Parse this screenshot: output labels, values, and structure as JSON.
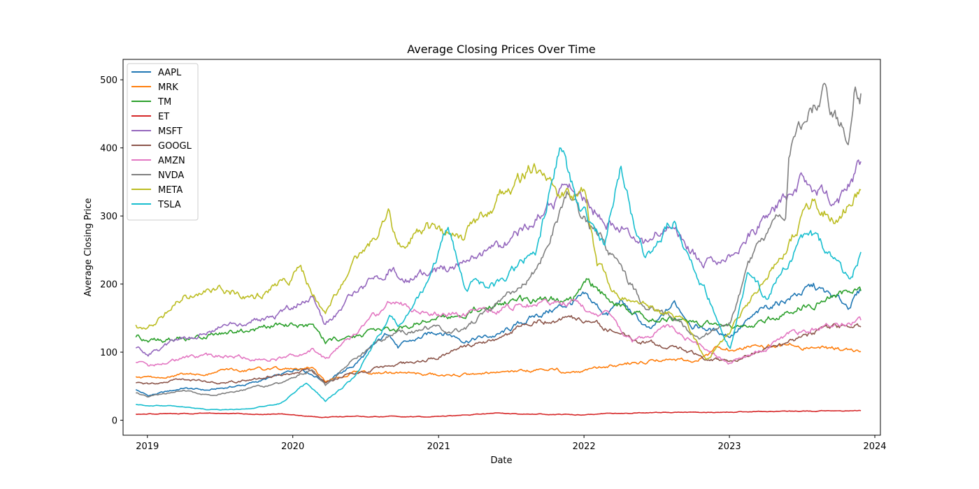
{
  "chart_data": {
    "type": "line",
    "title": "Average Closing Prices Over Time",
    "xlabel": "Date",
    "ylabel": "Average Closing Price",
    "xlim": [
      "2018-11-01",
      "2024-01-15"
    ],
    "ylim": [
      -22,
      530
    ],
    "x_ticks": [
      "2019",
      "2020",
      "2021",
      "2022",
      "2023",
      "2024"
    ],
    "y_ticks": [
      0,
      100,
      200,
      300,
      400,
      500
    ],
    "grid": false,
    "legend_position": "top-left",
    "series": [
      {
        "name": "AAPL",
        "color": "#1f77b4",
        "points": [
          [
            "2018-12-03",
            45
          ],
          [
            "2019-01-03",
            36
          ],
          [
            "2019-04-01",
            47
          ],
          [
            "2019-06-03",
            44
          ],
          [
            "2019-09-03",
            52
          ],
          [
            "2019-12-02",
            66
          ],
          [
            "2020-01-21",
            78
          ],
          [
            "2020-03-23",
            57
          ],
          [
            "2020-06-01",
            80
          ],
          [
            "2020-08-31",
            130
          ],
          [
            "2020-09-21",
            108
          ],
          [
            "2021-01-04",
            132
          ],
          [
            "2021-03-08",
            118
          ],
          [
            "2021-06-01",
            125
          ],
          [
            "2021-09-01",
            153
          ],
          [
            "2022-01-04",
            180
          ],
          [
            "2022-03-01",
            155
          ],
          [
            "2022-04-01",
            175
          ],
          [
            "2022-06-16",
            130
          ],
          [
            "2022-08-16",
            172
          ],
          [
            "2022-10-03",
            140
          ],
          [
            "2023-01-03",
            125
          ],
          [
            "2023-04-03",
            165
          ],
          [
            "2023-07-31",
            196
          ],
          [
            "2023-10-26",
            168
          ],
          [
            "2023-11-27",
            190
          ]
        ]
      },
      {
        "name": "MRK",
        "color": "#ff7f0e",
        "points": [
          [
            "2018-12-03",
            64
          ],
          [
            "2019-01-03",
            63
          ],
          [
            "2019-04-01",
            67
          ],
          [
            "2019-07-01",
            72
          ],
          [
            "2019-12-02",
            76
          ],
          [
            "2020-02-18",
            76
          ],
          [
            "2020-03-23",
            56
          ],
          [
            "2020-06-01",
            70
          ],
          [
            "2020-11-02",
            68
          ],
          [
            "2021-03-01",
            66
          ],
          [
            "2021-08-02",
            72
          ],
          [
            "2021-10-25",
            76
          ],
          [
            "2021-11-15",
            68
          ],
          [
            "2022-03-01",
            78
          ],
          [
            "2022-05-02",
            85
          ],
          [
            "2022-08-01",
            90
          ],
          [
            "2022-10-03",
            85
          ],
          [
            "2022-12-01",
            105
          ],
          [
            "2023-04-03",
            108
          ],
          [
            "2023-06-01",
            110
          ],
          [
            "2023-08-01",
            108
          ],
          [
            "2023-11-27",
            101
          ]
        ]
      },
      {
        "name": "TM",
        "color": "#2ca02c",
        "points": [
          [
            "2018-12-03",
            122
          ],
          [
            "2019-01-03",
            115
          ],
          [
            "2019-04-01",
            120
          ],
          [
            "2019-07-01",
            125
          ],
          [
            "2019-12-02",
            140
          ],
          [
            "2020-02-18",
            140
          ],
          [
            "2020-03-23",
            115
          ],
          [
            "2020-06-01",
            125
          ],
          [
            "2020-09-01",
            130
          ],
          [
            "2020-12-01",
            150
          ],
          [
            "2021-03-01",
            155
          ],
          [
            "2021-06-01",
            175
          ],
          [
            "2021-09-01",
            178
          ],
          [
            "2021-12-01",
            175
          ],
          [
            "2022-01-10",
            205
          ],
          [
            "2022-03-01",
            178
          ],
          [
            "2022-06-01",
            155
          ],
          [
            "2022-09-01",
            145
          ],
          [
            "2022-12-01",
            140
          ],
          [
            "2023-03-01",
            140
          ],
          [
            "2023-06-01",
            160
          ],
          [
            "2023-09-01",
            180
          ],
          [
            "2023-11-27",
            190
          ]
        ]
      },
      {
        "name": "ET",
        "color": "#d62728",
        "points": [
          [
            "2018-12-03",
            9
          ],
          [
            "2019-06-03",
            10
          ],
          [
            "2019-12-02",
            9
          ],
          [
            "2020-03-23",
            4
          ],
          [
            "2020-06-01",
            6
          ],
          [
            "2020-12-01",
            5
          ],
          [
            "2021-06-01",
            10
          ],
          [
            "2021-12-01",
            8
          ],
          [
            "2022-06-01",
            11
          ],
          [
            "2022-12-01",
            12
          ],
          [
            "2023-06-01",
            13
          ],
          [
            "2023-11-27",
            14
          ]
        ]
      },
      {
        "name": "MSFT",
        "color": "#9467bd",
        "points": [
          [
            "2018-12-03",
            106
          ],
          [
            "2019-01-03",
            97
          ],
          [
            "2019-04-01",
            120
          ],
          [
            "2019-07-01",
            135
          ],
          [
            "2019-12-02",
            155
          ],
          [
            "2020-02-18",
            185
          ],
          [
            "2020-03-23",
            140
          ],
          [
            "2020-06-01",
            185
          ],
          [
            "2020-09-01",
            225
          ],
          [
            "2020-10-01",
            205
          ],
          [
            "2020-12-01",
            215
          ],
          [
            "2021-03-01",
            230
          ],
          [
            "2021-06-01",
            250
          ],
          [
            "2021-09-01",
            295
          ],
          [
            "2021-11-22",
            340
          ],
          [
            "2022-01-03",
            320
          ],
          [
            "2022-03-01",
            295
          ],
          [
            "2022-06-01",
            260
          ],
          [
            "2022-08-01",
            285
          ],
          [
            "2022-10-25",
            230
          ],
          [
            "2023-01-03",
            240
          ],
          [
            "2023-04-03",
            300
          ],
          [
            "2023-07-03",
            350
          ],
          [
            "2023-10-02",
            320
          ],
          [
            "2023-11-27",
            380
          ]
        ]
      },
      {
        "name": "GOOGL",
        "color": "#8c564b",
        "points": [
          [
            "2018-12-03",
            55
          ],
          [
            "2019-01-03",
            52
          ],
          [
            "2019-04-01",
            60
          ],
          [
            "2019-07-01",
            55
          ],
          [
            "2019-12-02",
            66
          ],
          [
            "2020-02-18",
            75
          ],
          [
            "2020-03-23",
            55
          ],
          [
            "2020-06-01",
            70
          ],
          [
            "2020-09-01",
            80
          ],
          [
            "2020-12-01",
            88
          ],
          [
            "2021-03-01",
            105
          ],
          [
            "2021-06-01",
            122
          ],
          [
            "2021-09-01",
            145
          ],
          [
            "2021-11-15",
            150
          ],
          [
            "2022-01-03",
            145
          ],
          [
            "2022-03-01",
            135
          ],
          [
            "2022-06-01",
            115
          ],
          [
            "2022-09-01",
            105
          ],
          [
            "2022-11-01",
            90
          ],
          [
            "2023-01-03",
            88
          ],
          [
            "2023-04-03",
            105
          ],
          [
            "2023-07-03",
            120
          ],
          [
            "2023-09-01",
            135
          ],
          [
            "2023-11-27",
            137
          ]
        ]
      },
      {
        "name": "AMZN",
        "color": "#e377c2",
        "points": [
          [
            "2018-12-03",
            85
          ],
          [
            "2019-01-03",
            78
          ],
          [
            "2019-04-01",
            90
          ],
          [
            "2019-07-01",
            95
          ],
          [
            "2019-12-02",
            90
          ],
          [
            "2020-02-18",
            105
          ],
          [
            "2020-03-23",
            90
          ],
          [
            "2020-06-01",
            125
          ],
          [
            "2020-09-01",
            170
          ],
          [
            "2020-12-01",
            160
          ],
          [
            "2021-03-01",
            155
          ],
          [
            "2021-06-01",
            165
          ],
          [
            "2021-09-01",
            170
          ],
          [
            "2021-12-01",
            175
          ],
          [
            "2022-01-03",
            165
          ],
          [
            "2022-03-01",
            155
          ],
          [
            "2022-05-02",
            115
          ],
          [
            "2022-08-01",
            135
          ],
          [
            "2022-10-03",
            115
          ],
          [
            "2022-12-29",
            85
          ],
          [
            "2023-03-01",
            95
          ],
          [
            "2023-06-01",
            125
          ],
          [
            "2023-09-01",
            140
          ],
          [
            "2023-11-27",
            147
          ]
        ]
      },
      {
        "name": "NVDA",
        "color": "#7f7f7f",
        "points": [
          [
            "2018-12-03",
            40
          ],
          [
            "2019-01-03",
            34
          ],
          [
            "2019-04-01",
            45
          ],
          [
            "2019-06-03",
            36
          ],
          [
            "2019-09-03",
            45
          ],
          [
            "2019-12-02",
            55
          ],
          [
            "2020-02-18",
            75
          ],
          [
            "2020-03-23",
            50
          ],
          [
            "2020-06-01",
            88
          ],
          [
            "2020-09-01",
            125
          ],
          [
            "2020-12-01",
            135
          ],
          [
            "2021-03-01",
            130
          ],
          [
            "2021-06-01",
            175
          ],
          [
            "2021-09-01",
            220
          ],
          [
            "2021-11-22",
            330
          ],
          [
            "2022-01-03",
            295
          ],
          [
            "2022-03-01",
            250
          ],
          [
            "2022-06-01",
            170
          ],
          [
            "2022-09-01",
            140
          ],
          [
            "2022-10-17",
            115
          ],
          [
            "2023-01-03",
            145
          ],
          [
            "2023-03-01",
            240
          ],
          [
            "2023-05-22",
            310
          ],
          [
            "2023-05-30",
            400
          ],
          [
            "2023-07-03",
            440
          ],
          [
            "2023-08-24",
            490
          ],
          [
            "2023-10-26",
            405
          ],
          [
            "2023-11-13",
            500
          ],
          [
            "2023-11-27",
            480
          ]
        ]
      },
      {
        "name": "META",
        "color": "#bcbd22",
        "points": [
          [
            "2018-12-03",
            140
          ],
          [
            "2019-01-03",
            133
          ],
          [
            "2019-04-01",
            180
          ],
          [
            "2019-07-01",
            195
          ],
          [
            "2019-10-01",
            180
          ],
          [
            "2019-12-02",
            200
          ],
          [
            "2020-01-21",
            220
          ],
          [
            "2020-03-23",
            155
          ],
          [
            "2020-06-01",
            230
          ],
          [
            "2020-08-31",
            300
          ],
          [
            "2020-09-21",
            255
          ],
          [
            "2020-12-01",
            280
          ],
          [
            "2021-03-01",
            265
          ],
          [
            "2021-06-01",
            330
          ],
          [
            "2021-09-01",
            375
          ],
          [
            "2021-11-01",
            330
          ],
          [
            "2022-01-03",
            335
          ],
          [
            "2022-02-03",
            230
          ],
          [
            "2022-03-14",
            190
          ],
          [
            "2022-06-01",
            170
          ],
          [
            "2022-09-01",
            150
          ],
          [
            "2022-11-03",
            90
          ],
          [
            "2023-01-03",
            130
          ],
          [
            "2023-04-03",
            210
          ],
          [
            "2023-07-31",
            320
          ],
          [
            "2023-10-02",
            300
          ],
          [
            "2023-11-27",
            338
          ]
        ]
      },
      {
        "name": "TSLA",
        "color": "#17becf",
        "points": [
          [
            "2018-12-03",
            23
          ],
          [
            "2019-01-03",
            22
          ],
          [
            "2019-04-01",
            20
          ],
          [
            "2019-06-03",
            15
          ],
          [
            "2019-09-03",
            16
          ],
          [
            "2019-12-02",
            25
          ],
          [
            "2020-02-04",
            55
          ],
          [
            "2020-03-23",
            28
          ],
          [
            "2020-06-01",
            60
          ],
          [
            "2020-08-31",
            150
          ],
          [
            "2020-09-21",
            140
          ],
          [
            "2020-12-01",
            195
          ],
          [
            "2021-01-25",
            290
          ],
          [
            "2021-03-08",
            200
          ],
          [
            "2021-06-01",
            200
          ],
          [
            "2021-09-01",
            250
          ],
          [
            "2021-11-04",
            405
          ],
          [
            "2021-12-20",
            310
          ],
          [
            "2022-02-22",
            260
          ],
          [
            "2022-04-04",
            370
          ],
          [
            "2022-06-01",
            230
          ],
          [
            "2022-08-16",
            300
          ],
          [
            "2022-10-03",
            230
          ],
          [
            "2023-01-03",
            110
          ],
          [
            "2023-02-15",
            210
          ],
          [
            "2023-04-03",
            180
          ],
          [
            "2023-07-18",
            280
          ],
          [
            "2023-09-01",
            250
          ],
          [
            "2023-10-31",
            200
          ],
          [
            "2023-11-27",
            247
          ]
        ]
      }
    ]
  }
}
